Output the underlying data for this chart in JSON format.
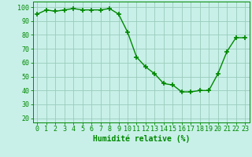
{
  "x": [
    0,
    1,
    2,
    3,
    4,
    5,
    6,
    7,
    8,
    9,
    10,
    11,
    12,
    13,
    14,
    15,
    16,
    17,
    18,
    19,
    20,
    21,
    22,
    23
  ],
  "y": [
    95,
    98,
    97,
    98,
    99,
    98,
    98,
    98,
    99,
    95,
    82,
    64,
    57,
    52,
    45,
    44,
    39,
    39,
    40,
    40,
    52,
    68,
    78,
    78
  ],
  "line_color": "#008800",
  "marker": "+",
  "marker_color": "#008800",
  "bg_color": "#c8f0e8",
  "grid_color": "#99ccbb",
  "xlabel": "Humidité relative (%)",
  "xlabel_color": "#008800",
  "ylabel_ticks": [
    20,
    30,
    40,
    50,
    60,
    70,
    80,
    90,
    100
  ],
  "ylim": [
    17,
    104
  ],
  "xlim": [
    -0.5,
    23.5
  ],
  "tick_color": "#008800",
  "tick_label_color": "#008800",
  "spine_color": "#008800",
  "xlabel_fontsize": 7,
  "tick_fontsize": 6,
  "linewidth": 1.0,
  "markersize": 5
}
